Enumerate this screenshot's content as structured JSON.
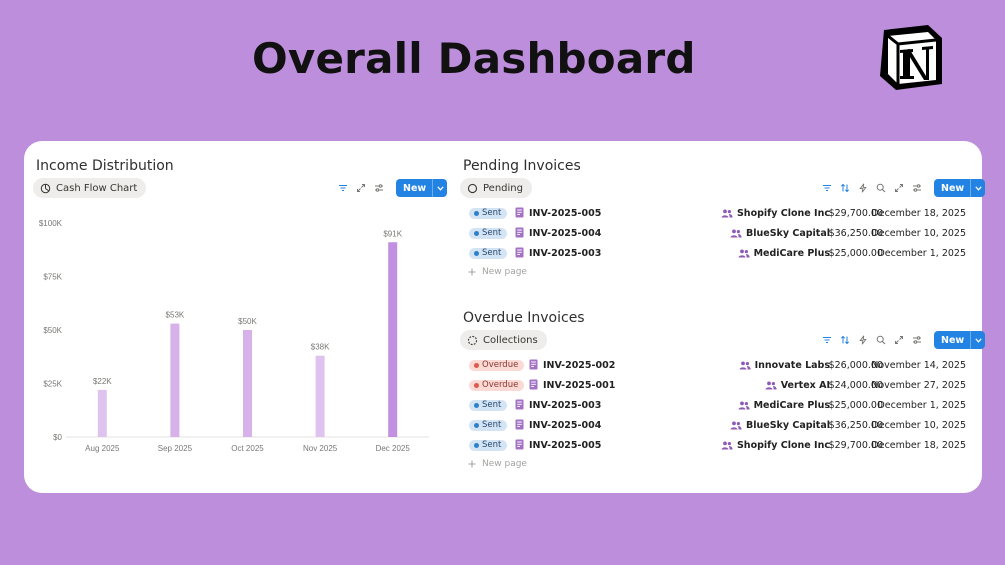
{
  "page": {
    "title": "Overall Dashboard"
  },
  "colors": {
    "background": "#bd8edb",
    "accent": "#2383e2",
    "bar_light": "#dfc3ef",
    "bar_mid": "#d6b1ea",
    "bar_dark": "#c190e0"
  },
  "income": {
    "title": "Income Distribution",
    "view_label": "Cash Flow Chart",
    "new_label": "New"
  },
  "chart_data": {
    "type": "bar",
    "categories": [
      "Aug 2025",
      "Sep 2025",
      "Oct 2025",
      "Nov 2025",
      "Dec 2025"
    ],
    "values": [
      22000,
      53000,
      50000,
      38000,
      91000
    ],
    "data_labels": [
      "$22K",
      "$53K",
      "$50K",
      "$38K",
      "$91K"
    ],
    "y_ticks": [
      0,
      25000,
      50000,
      75000,
      100000
    ],
    "y_tick_labels": [
      "$0",
      "$25K",
      "$50K",
      "$75K",
      "$100K"
    ],
    "ylim": [
      0,
      100000
    ],
    "grid": false
  },
  "pending": {
    "title": "Pending Invoices",
    "view_label": "Pending",
    "new_label": "New",
    "new_page_label": "New page",
    "rows": [
      {
        "status": "Sent",
        "id": "INV-2025-005",
        "client": "Shopify Clone Inc",
        "amount": "$29,700.00",
        "due": "December 18, 2025"
      },
      {
        "status": "Sent",
        "id": "INV-2025-004",
        "client": "BlueSky Capital",
        "amount": "$36,250.00",
        "due": "December 10, 2025"
      },
      {
        "status": "Sent",
        "id": "INV-2025-003",
        "client": "MediCare Plus",
        "amount": "$25,000.00",
        "due": "December 1, 2025"
      }
    ]
  },
  "overdue": {
    "title": "Overdue Invoices",
    "view_label": "Collections",
    "new_label": "New",
    "new_page_label": "New page",
    "rows": [
      {
        "status": "Overdue",
        "id": "INV-2025-002",
        "client": "Innovate Labs",
        "amount": "$26,000.00",
        "due": "November 14, 2025"
      },
      {
        "status": "Overdue",
        "id": "INV-2025-001",
        "client": "Vertex AI",
        "amount": "$24,000.00",
        "due": "November 27, 2025"
      },
      {
        "status": "Sent",
        "id": "INV-2025-003",
        "client": "MediCare Plus",
        "amount": "$25,000.00",
        "due": "December 1, 2025"
      },
      {
        "status": "Sent",
        "id": "INV-2025-004",
        "client": "BlueSky Capital",
        "amount": "$36,250.00",
        "due": "December 10, 2025"
      },
      {
        "status": "Sent",
        "id": "INV-2025-005",
        "client": "Shopify Clone Inc",
        "amount": "$29,700.00",
        "due": "December 18, 2025"
      }
    ]
  }
}
